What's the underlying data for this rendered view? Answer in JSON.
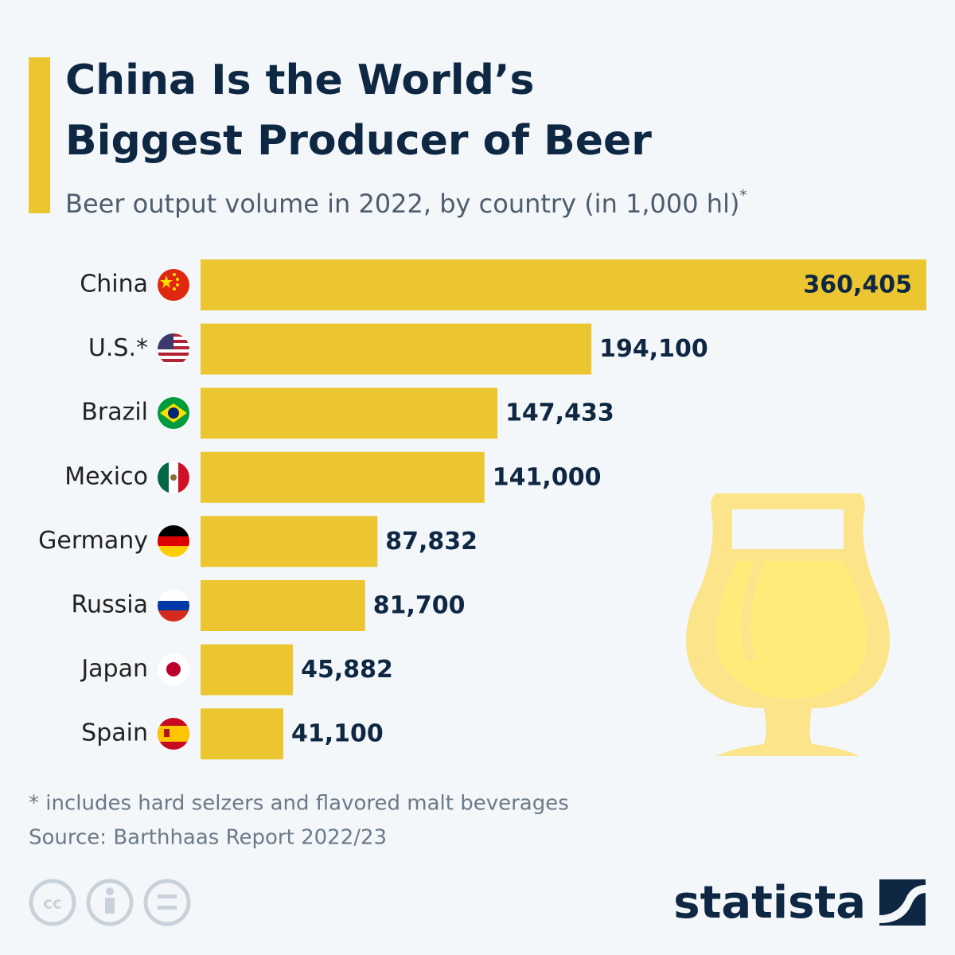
{
  "chart_data": {
    "type": "bar",
    "orientation": "horizontal",
    "title": [
      "China Is the World’s",
      "Biggest Producer of Beer"
    ],
    "subtitle": "Beer output volume in 2022, by country (in 1,000 hl)",
    "subtitle_marker": "*",
    "categories": [
      "China",
      "U.S.*",
      "Brazil",
      "Mexico",
      "Germany",
      "Russia",
      "Japan",
      "Spain"
    ],
    "values": [
      360405,
      194100,
      147433,
      141000,
      87832,
      81700,
      45882,
      41100
    ],
    "value_labels": [
      "360,405",
      "194,100",
      "147,433",
      "141,000",
      "87,832",
      "81,700",
      "45,882",
      "41,100"
    ],
    "color": "#ecc631",
    "note": "* includes hard selzers and flavored malt beverages",
    "source": "Source: Barthhaas Report 2022/23",
    "brand": "statista"
  }
}
